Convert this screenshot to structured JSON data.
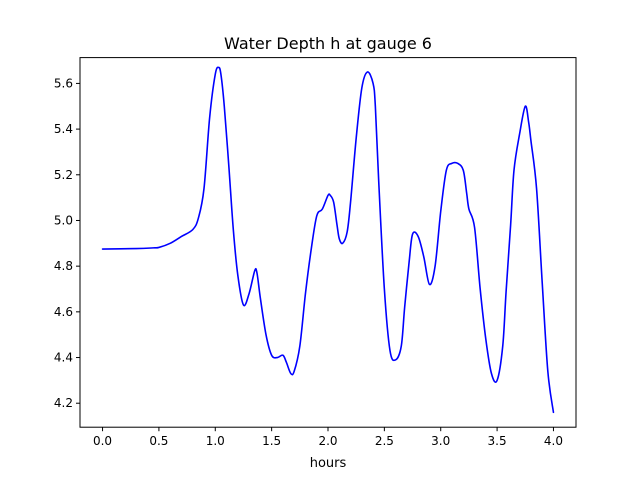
{
  "chart_data": {
    "type": "line",
    "title": "Water Depth h at gauge 6",
    "xlabel": "hours",
    "ylabel": "",
    "xlim": [
      -0.2,
      4.2
    ],
    "ylim": [
      4.095,
      5.713
    ],
    "xticks": [
      0.0,
      0.5,
      1.0,
      1.5,
      2.0,
      2.5,
      3.0,
      3.5,
      4.0
    ],
    "xtick_labels": [
      "0.0",
      "0.5",
      "1.0",
      "1.5",
      "2.0",
      "2.5",
      "3.0",
      "3.5",
      "4.0"
    ],
    "yticks": [
      4.2,
      4.4,
      4.6,
      4.8,
      5.0,
      5.2,
      5.4,
      5.6
    ],
    "ytick_labels": [
      "4.2",
      "4.4",
      "4.6",
      "4.8",
      "5.0",
      "5.2",
      "5.4",
      "5.6"
    ],
    "grid": false,
    "series": [
      {
        "color": "#0000ff",
        "x": [
          0.0,
          0.3,
          0.45,
          0.5,
          0.6,
          0.7,
          0.8,
          0.85,
          0.9,
          0.95,
          1.0,
          1.03,
          1.05,
          1.08,
          1.12,
          1.16,
          1.2,
          1.25,
          1.3,
          1.35,
          1.37,
          1.4,
          1.45,
          1.5,
          1.55,
          1.6,
          1.63,
          1.67,
          1.7,
          1.75,
          1.8,
          1.85,
          1.9,
          1.95,
          2.0,
          2.02,
          2.05,
          2.08,
          2.1,
          2.13,
          2.17,
          2.2,
          2.25,
          2.3,
          2.35,
          2.4,
          2.42,
          2.45,
          2.5,
          2.55,
          2.6,
          2.65,
          2.68,
          2.72,
          2.75,
          2.8,
          2.85,
          2.9,
          2.95,
          3.0,
          3.05,
          3.1,
          3.15,
          3.2,
          3.23,
          3.25,
          3.3,
          3.35,
          3.4,
          3.45,
          3.5,
          3.55,
          3.58,
          3.62,
          3.65,
          3.7,
          3.75,
          3.78,
          3.8,
          3.85,
          3.9,
          3.95,
          4.0
        ],
        "y": [
          4.875,
          4.877,
          4.88,
          4.882,
          4.9,
          4.93,
          4.96,
          5.01,
          5.14,
          5.45,
          5.64,
          5.67,
          5.64,
          5.5,
          5.24,
          4.96,
          4.76,
          4.63,
          4.68,
          4.78,
          4.77,
          4.66,
          4.5,
          4.41,
          4.4,
          4.41,
          4.38,
          4.33,
          4.34,
          4.45,
          4.68,
          4.87,
          5.02,
          5.05,
          5.11,
          5.11,
          5.08,
          4.98,
          4.92,
          4.9,
          4.95,
          5.08,
          5.36,
          5.58,
          5.65,
          5.6,
          5.5,
          5.17,
          4.7,
          4.43,
          4.39,
          4.45,
          4.62,
          4.82,
          4.94,
          4.93,
          4.84,
          4.72,
          4.8,
          5.04,
          5.22,
          5.25,
          5.25,
          5.22,
          5.12,
          5.05,
          4.97,
          4.7,
          4.48,
          4.33,
          4.3,
          4.45,
          4.69,
          4.98,
          5.22,
          5.38,
          5.5,
          5.43,
          5.35,
          5.14,
          4.73,
          4.34,
          4.16
        ]
      }
    ]
  }
}
